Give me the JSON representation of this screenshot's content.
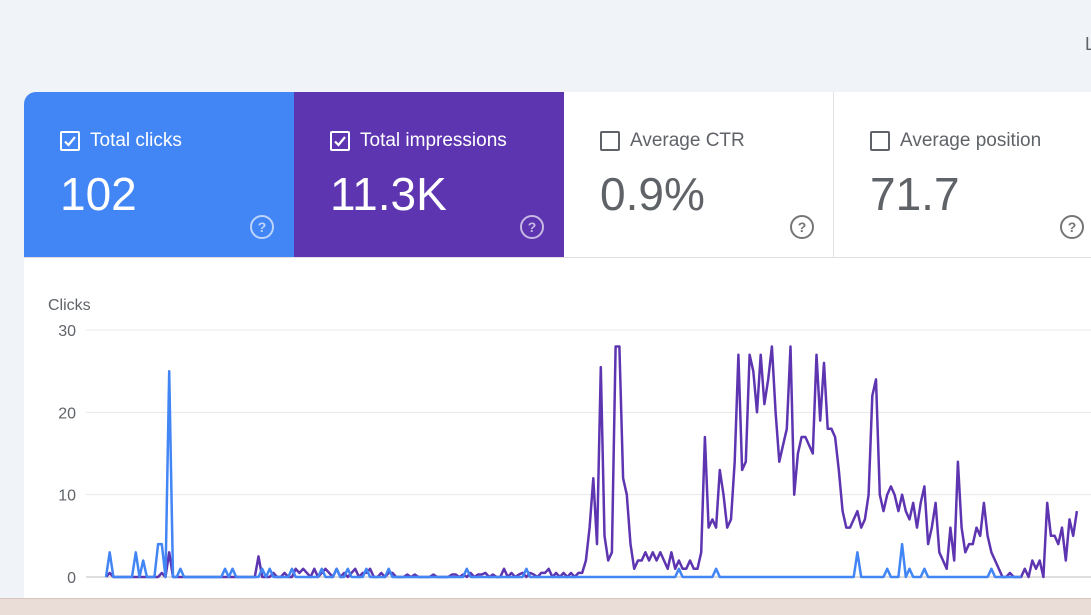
{
  "corner": {
    "text": "L"
  },
  "metrics": {
    "clicks": {
      "label": "Total clicks",
      "value": "102",
      "checked": true,
      "color": "#4285f4"
    },
    "impressions": {
      "label": "Total impressions",
      "value": "11.3K",
      "checked": true,
      "color": "#5e35b1"
    },
    "ctr": {
      "label": "Average CTR",
      "value": "0.9%",
      "checked": false
    },
    "position": {
      "label": "Average position",
      "value": "71.7",
      "checked": false
    },
    "help_glyph": "?"
  },
  "chart_data": {
    "type": "line",
    "ylabel": "Clicks",
    "ylim": [
      0,
      30
    ],
    "yticks": [
      0,
      10,
      20,
      30
    ],
    "grid": true,
    "series": [
      {
        "color": "#4285f4",
        "values": [
          0,
          3,
          0,
          0,
          0,
          0,
          0,
          0,
          3,
          0,
          2,
          0,
          0,
          0,
          4,
          4,
          0,
          25,
          0,
          0,
          1,
          0,
          0,
          0,
          0,
          0,
          0,
          0,
          0,
          0,
          0,
          0,
          1,
          0,
          1,
          0,
          0,
          0,
          0,
          0,
          0,
          0,
          1,
          0,
          1,
          0,
          0,
          0,
          0,
          0,
          1,
          0,
          0,
          0,
          0,
          0,
          0,
          0,
          1,
          0,
          0,
          0,
          1,
          0,
          0,
          1,
          0,
          0,
          0,
          0,
          1,
          0,
          0,
          0,
          0,
          0,
          1,
          0,
          0,
          0,
          0,
          0,
          0,
          0,
          0,
          0,
          0,
          0,
          0,
          0,
          0,
          0,
          0,
          0,
          0,
          0,
          0,
          1,
          0,
          0,
          0,
          0,
          0,
          0,
          0,
          0,
          0,
          0,
          0,
          0,
          0,
          0,
          0,
          1,
          0,
          0,
          0,
          0,
          0,
          0,
          0,
          0,
          0,
          0,
          0,
          0,
          0,
          0,
          0,
          0,
          0,
          0,
          0,
          0,
          0,
          0,
          0,
          0,
          0,
          0,
          0,
          0,
          0,
          0,
          0,
          0,
          0,
          0,
          0,
          0,
          0,
          0,
          0,
          0,
          1,
          0,
          0,
          0,
          0,
          0,
          0,
          0,
          0,
          0,
          1,
          0,
          0,
          0,
          0,
          0,
          0,
          0,
          0,
          0,
          0,
          0,
          0,
          0,
          0,
          0,
          0,
          0,
          0,
          0,
          0,
          0,
          0,
          0,
          0,
          0,
          0,
          0,
          0,
          0,
          0,
          0,
          0,
          0,
          0,
          0,
          0,
          0,
          3,
          0,
          0,
          0,
          0,
          0,
          0,
          0,
          1,
          0,
          0,
          0,
          4,
          0,
          1,
          0,
          0,
          0,
          1,
          0,
          0,
          0,
          0,
          0,
          0,
          0,
          0,
          0,
          0,
          0,
          0,
          0,
          0,
          0,
          0,
          0,
          1,
          0,
          0,
          0,
          0,
          0,
          0,
          0,
          0
        ]
      },
      {
        "color": "#5e35b1",
        "values": [
          0,
          0.5,
          0,
          0,
          0,
          0,
          0,
          0,
          0,
          0,
          0,
          0,
          0,
          0,
          0,
          0.5,
          0,
          3,
          0,
          0,
          0,
          0,
          0,
          0,
          0,
          0,
          0,
          0,
          0,
          0,
          0,
          0,
          0,
          0,
          0,
          0,
          0,
          0,
          0,
          0,
          0,
          2.5,
          0,
          0,
          0,
          0.5,
          0,
          0,
          0.5,
          0,
          0,
          1,
          0.5,
          1,
          0.5,
          0,
          1,
          0,
          0.5,
          1,
          0.5,
          0,
          1,
          0,
          0.5,
          0,
          0.5,
          1,
          0,
          0.5,
          0.5,
          1,
          0,
          0,
          0.5,
          0,
          0.5,
          0.5,
          0,
          0,
          0,
          0.3,
          0,
          0.3,
          0,
          0,
          0,
          0,
          0.3,
          0,
          0,
          0,
          0,
          0.3,
          0.3,
          0,
          0.3,
          0,
          0.5,
          0,
          0.3,
          0.3,
          0.5,
          0,
          0.3,
          0,
          0,
          1,
          0,
          0.5,
          0,
          0.3,
          0.5,
          0,
          0.5,
          0.3,
          0,
          0.5,
          0.5,
          1,
          0,
          0.5,
          0,
          0.5,
          0,
          0.5,
          0,
          0.5,
          0.5,
          2,
          6,
          12,
          4,
          25.5,
          5,
          2,
          3,
          28,
          28,
          12,
          10,
          4,
          1,
          2,
          2,
          3,
          2,
          3,
          2,
          3,
          2,
          1,
          3,
          1,
          2,
          1,
          1,
          2,
          1,
          1,
          3,
          17,
          6,
          7,
          6,
          13,
          10,
          6,
          7,
          14,
          27,
          13,
          14,
          27,
          25,
          20,
          27,
          21,
          24,
          28,
          20,
          14,
          16,
          18,
          28,
          10,
          15,
          17,
          17,
          16,
          15,
          27,
          19,
          26,
          18,
          18,
          17,
          13,
          8,
          6,
          6,
          7,
          8,
          6,
          7,
          10,
          22,
          24,
          10,
          8,
          10,
          11,
          10,
          8,
          10,
          8,
          7,
          9,
          6,
          9,
          11,
          4,
          6,
          9,
          3,
          2,
          1,
          6,
          2,
          14,
          6,
          3,
          4,
          4,
          6,
          5,
          9,
          5,
          3,
          2,
          1,
          0,
          0,
          0.5,
          0,
          0,
          0,
          1,
          0,
          2,
          1,
          2,
          0,
          9,
          5,
          5,
          4,
          6,
          2,
          7,
          5,
          8
        ]
      }
    ]
  }
}
